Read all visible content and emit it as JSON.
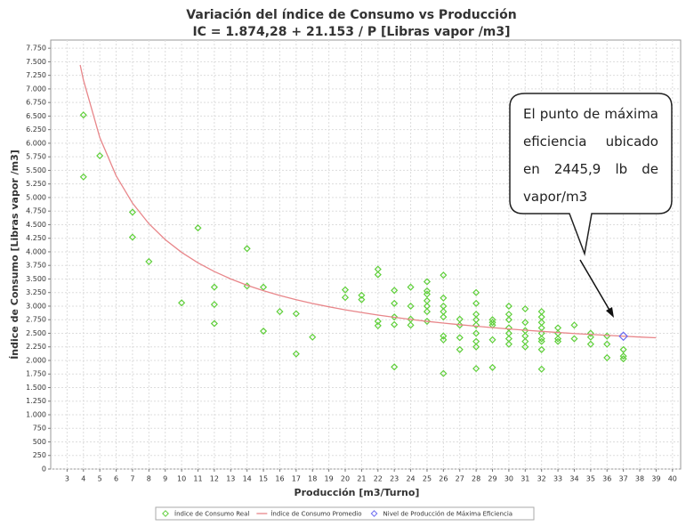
{
  "chart_data": {
    "type": "scatter",
    "title": "Variación del índice de Consumo vs Producción",
    "subtitle": "IC = 1.874,28 + 21.153 / P [Libras vapor /m3]",
    "x_label": "Producción [m3/Turno]",
    "y_label": "Índice de Consumo [Libras vapor /m3]",
    "annotation": "El punto de máxima eficiencia ubicado en 2445,9 lb de vapor/m3",
    "xlim": [
      2,
      40.5
    ],
    "ylim": [
      0,
      7900
    ],
    "grid": true,
    "legend": "bottom",
    "xticks": [
      3,
      4,
      5,
      6,
      7,
      8,
      9,
      10,
      11,
      12,
      13,
      14,
      15,
      16,
      17,
      18,
      19,
      20,
      21,
      22,
      23,
      24,
      25,
      26,
      27,
      28,
      29,
      30,
      31,
      32,
      33,
      34,
      35,
      36,
      37,
      38,
      39,
      40
    ],
    "yticks": [
      0,
      250,
      500,
      750,
      {
        "value": 1000,
        "label": "1.000"
      },
      {
        "value": 1250,
        "label": "1.250"
      },
      {
        "value": 1500,
        "label": "1.500"
      },
      {
        "value": 1750,
        "label": "1.750"
      },
      {
        "value": 2000,
        "label": "2.000"
      },
      {
        "value": 2250,
        "label": "2.250"
      },
      {
        "value": 2500,
        "label": "2.500"
      },
      {
        "value": 2750,
        "label": "2.750"
      },
      {
        "value": 3000,
        "label": "3.000"
      },
      {
        "value": 3250,
        "label": "3.250"
      },
      {
        "value": 3500,
        "label": "3.500"
      },
      {
        "value": 3750,
        "label": "3.750"
      },
      {
        "value": 4000,
        "label": "4.000"
      },
      {
        "value": 4250,
        "label": "4.250"
      },
      {
        "value": 4500,
        "label": "4.500"
      },
      {
        "value": 4750,
        "label": "4.750"
      },
      {
        "value": 5000,
        "label": "5.000"
      },
      {
        "value": 5250,
        "label": "5.250"
      },
      {
        "value": 5500,
        "label": "5.500"
      },
      {
        "value": 5750,
        "label": "5.750"
      },
      {
        "value": 6000,
        "label": "6.000"
      },
      {
        "value": 6250,
        "label": "6.250"
      },
      {
        "value": 6500,
        "label": "6.500"
      },
      {
        "value": 6750,
        "label": "6.750"
      },
      {
        "value": 7000,
        "label": "7.000"
      },
      {
        "value": 7250,
        "label": "7.250"
      },
      {
        "value": 7500,
        "label": "7.500"
      },
      {
        "value": 7750,
        "label": "7.750"
      }
    ],
    "series": [
      {
        "name": "Índice de Consumo Real",
        "type": "scatter",
        "color": "#5fcf3a",
        "x": [
          4,
          4,
          5,
          7,
          7,
          8,
          10,
          11,
          12,
          12,
          12,
          14,
          14,
          15,
          15,
          16,
          17,
          17,
          18,
          20,
          20,
          21,
          21,
          22,
          22,
          22,
          22,
          23,
          23,
          23,
          23,
          23,
          24,
          24,
          24,
          24,
          25,
          25,
          25,
          25,
          25,
          25,
          25,
          26,
          26,
          26,
          26,
          26,
          26,
          26,
          26,
          27,
          27,
          27,
          27,
          28,
          28,
          28,
          28,
          28,
          28,
          28,
          28,
          28,
          29,
          29,
          29,
          29,
          29,
          30,
          30,
          30,
          30,
          30,
          30,
          30,
          31,
          31,
          31,
          31,
          31,
          31,
          32,
          32,
          32,
          32,
          32,
          32,
          32,
          32,
          32,
          33,
          33,
          33,
          33,
          34,
          34,
          35,
          35,
          35,
          36,
          36,
          36,
          37,
          37,
          37
        ],
        "values": [
          6520,
          5380,
          5770,
          4730,
          4270,
          3820,
          3060,
          4440,
          3350,
          3030,
          2680,
          4060,
          3370,
          3350,
          2540,
          2900,
          2860,
          2120,
          2430,
          3300,
          3160,
          3200,
          3120,
          3680,
          3580,
          2720,
          2640,
          3290,
          3050,
          2800,
          2660,
          1880,
          3350,
          3000,
          2760,
          2650,
          3450,
          3280,
          3220,
          3100,
          3000,
          2900,
          2720,
          3570,
          3150,
          3000,
          2900,
          2800,
          2450,
          2380,
          1760,
          2760,
          2650,
          2420,
          2200,
          3250,
          3050,
          2850,
          2750,
          2650,
          2500,
          2350,
          2250,
          1850,
          2750,
          2700,
          2650,
          2380,
          1870,
          3000,
          2850,
          2750,
          2600,
          2500,
          2400,
          2300,
          2950,
          2700,
          2550,
          2450,
          2350,
          2250,
          2900,
          2800,
          2700,
          2600,
          2500,
          2400,
          2350,
          2200,
          1840,
          2600,
          2500,
          2400,
          2350,
          2650,
          2400,
          2500,
          2430,
          2300,
          2450,
          2300,
          2050,
          2200,
          2080,
          2030
        ]
      },
      {
        "name": "Índice de Consumo Promedio",
        "type": "line",
        "color": "#e8868a",
        "x": [
          3.8,
          4,
          5,
          6,
          7,
          8,
          9,
          10,
          11,
          12,
          13,
          14,
          15,
          16,
          17,
          18,
          19,
          20,
          21,
          22,
          23,
          24,
          25,
          26,
          27,
          28,
          29,
          30,
          31,
          32,
          33,
          34,
          35,
          36,
          37,
          38,
          39
        ],
        "values": [
          7441,
          7163,
          6105,
          5400,
          4896,
          4518,
          4225,
          3990,
          3797,
          3637,
          3501,
          3385,
          3285,
          3196,
          3119,
          3049,
          2988,
          2932,
          2882,
          2836,
          2794,
          2756,
          2720,
          2688,
          2658,
          2630,
          2604,
          2579,
          2557,
          2535,
          2515,
          2496,
          2479,
          2462,
          2446,
          2431,
          2417
        ]
      },
      {
        "name": "Nivel de Producción de Máxima Eficiencia",
        "type": "scatter",
        "color": "#6a6af0",
        "x": [
          37
        ],
        "values": [
          2445.9
        ]
      }
    ]
  }
}
